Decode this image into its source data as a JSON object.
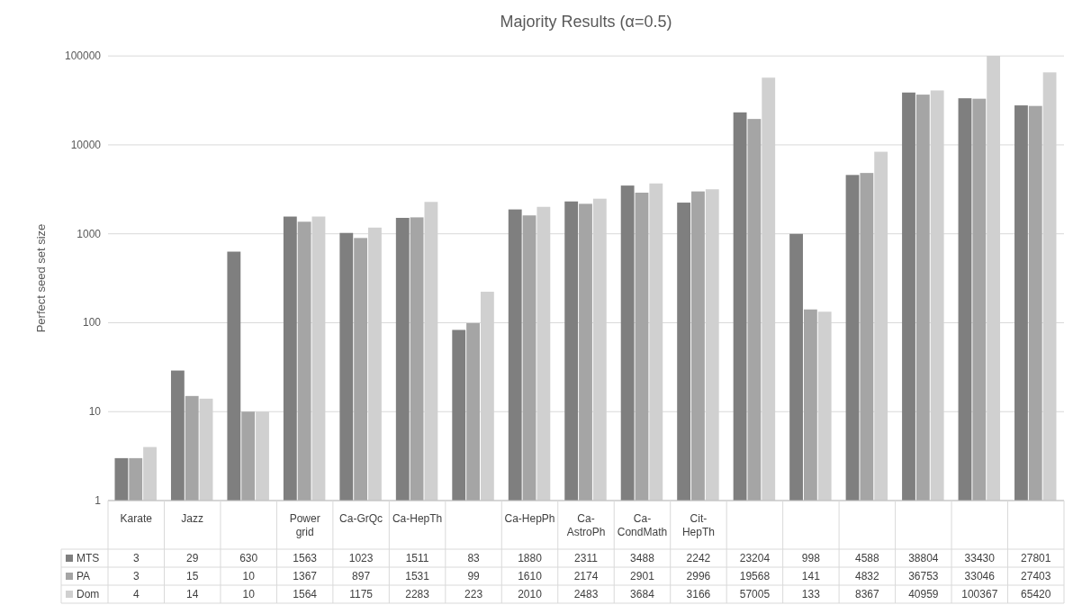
{
  "chart_data": {
    "type": "bar",
    "title": "Majority Results (α=0.5)",
    "ylabel": "Perfect seed set size",
    "categories": [
      "Karate",
      "Jazz",
      null,
      "Power grid",
      "Ca-GrQc",
      "Ca-HepTh",
      null,
      "Ca-HepPh",
      "Ca-AstroPh",
      "Ca-CondMath",
      "Cit-HepTh",
      null,
      null,
      null,
      null,
      null,
      null
    ],
    "series": [
      {
        "name": "MTS",
        "color": "#7f7f7f",
        "values": [
          3,
          29,
          630,
          1563,
          1023,
          1511,
          83,
          1880,
          2311,
          3488,
          2242,
          23204,
          998,
          4588,
          38804,
          33430,
          27801
        ]
      },
      {
        "name": "PA",
        "color": "#a5a5a5",
        "values": [
          3,
          15,
          10,
          1367,
          897,
          1531,
          99,
          1610,
          2174,
          2901,
          2996,
          19568,
          141,
          4832,
          36753,
          33046,
          27403
        ]
      },
      {
        "name": "Dom",
        "color": "#d0d0d0",
        "values": [
          4,
          14,
          10,
          1564,
          1175,
          2283,
          223,
          2010,
          2483,
          3684,
          3166,
          57005,
          133,
          8367,
          40959,
          100367,
          65420
        ]
      }
    ],
    "log": true,
    "ylim": [
      1,
      100367
    ],
    "yticks": [
      1,
      10,
      100,
      1000,
      10000,
      100000
    ],
    "grid": "y",
    "legend": "bottom",
    "data_labels": true
  }
}
